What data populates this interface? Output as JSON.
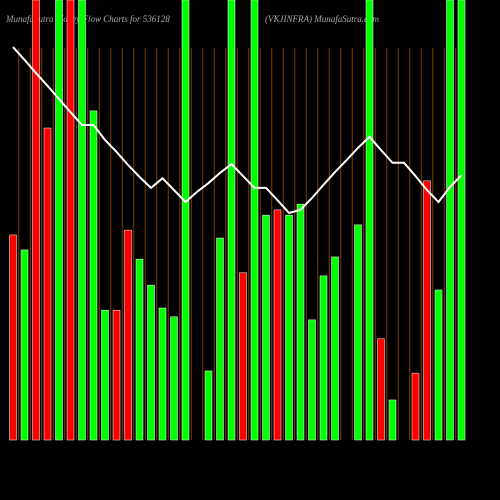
{
  "chart_data": {
    "type": "bar",
    "title": "MunafaSutra Money Flow Charts for 536128",
    "subtitle": "(VKJINFRA) MunafaSutra.com",
    "categories": [
      null,
      null,
      null,
      null,
      null,
      null,
      null,
      null,
      null,
      null,
      null,
      null,
      null,
      null,
      null,
      null,
      null,
      null,
      null,
      null,
      null,
      null,
      null,
      null,
      null,
      null,
      null,
      null,
      null,
      null,
      null,
      null,
      null,
      null,
      null,
      null,
      null,
      null,
      null,
      null
    ],
    "values": [
      46.6,
      43.2,
      100,
      70.9,
      100,
      100,
      100,
      74.8,
      29.5,
      29.5,
      47.7,
      41.1,
      35.2,
      30,
      28,
      100,
      0,
      15.7,
      45.9,
      100,
      38,
      100,
      51.1,
      52.3,
      51.1,
      53.6,
      27.3,
      37.3,
      41.6,
      0,
      48.9,
      100,
      23,
      9.1,
      0,
      15.2,
      58.9,
      34.1,
      100,
      100
    ],
    "bar_colors": [
      "#ff0000",
      "#00ff00",
      "#ff0000",
      "#ff0000",
      "#00ff00",
      "#ff0000",
      "#00ff00",
      "#00ff00",
      "#00ff00",
      "#ff0000",
      "#ff0000",
      "#00ff00",
      "#00ff00",
      "#00ff00",
      "#00ff00",
      "#00ff00",
      "#00ff00",
      "#00ff00",
      "#00ff00",
      "#00ff00",
      "#ff0000",
      "#00ff00",
      "#00ff00",
      "#ff0000",
      "#00ff00",
      "#00ff00",
      "#00ff00",
      "#00ff00",
      "#00ff00",
      "#00ff00",
      "#00ff00",
      "#00ff00",
      "#ff0000",
      "#00ff00",
      "#00ff00",
      "#ff0000",
      "#ff0000",
      "#00ff00",
      "#00ff00",
      "#00ff00"
    ],
    "line_values": [
      89.3,
      86.4,
      83.4,
      80.5,
      77.5,
      74.5,
      71.6,
      71.6,
      68.2,
      65.5,
      62.5,
      59.8,
      57.3,
      59.5,
      56.8,
      54.1,
      56.4,
      58.4,
      60.7,
      62.7,
      60,
      57.3,
      57.3,
      54.5,
      51.6,
      52.3,
      55,
      58,
      60.9,
      63.6,
      66.4,
      68.9,
      65.9,
      63,
      63,
      60,
      56.8,
      54.1,
      57.5,
      60.2
    ],
    "line_color": "#ffffff",
    "ylim": [
      0,
      100
    ]
  }
}
